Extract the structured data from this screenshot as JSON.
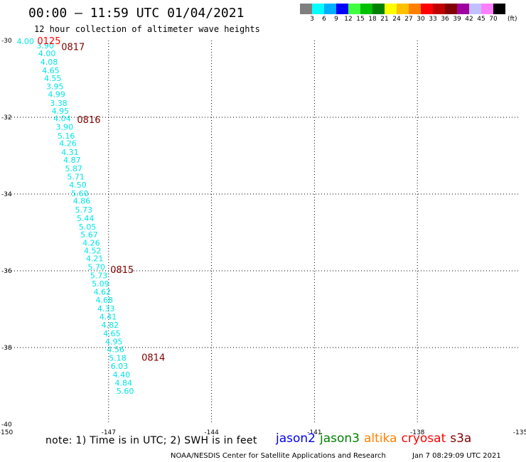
{
  "header": {
    "title": "00:00 – 11:59 UTC 01/04/2021",
    "subtitle": "12 hour collection of altimeter wave heights"
  },
  "colorbar": {
    "colors": [
      "#7f7f7f",
      "#00ffff",
      "#00b0ff",
      "#0000ff",
      "#40ff40",
      "#00c000",
      "#008000",
      "#ffff00",
      "#ffc000",
      "#ff8000",
      "#ff0000",
      "#c00000",
      "#800000",
      "#a000a0",
      "#c0c0ff",
      "#ff80ff",
      "#000000"
    ],
    "labels": [
      "3",
      "6",
      "9",
      "12",
      "15",
      "18",
      "21",
      "24",
      "27",
      "30",
      "33",
      "36",
      "39",
      "42",
      "45",
      "70"
    ],
    "unit": "(ft)"
  },
  "footer": {
    "note": "note:  1) Time is in UTC;  2) SWH is in feet",
    "satellites": [
      {
        "name": "jason2",
        "color": "#0000ff"
      },
      {
        "name": "jason3",
        "color": "#008000"
      },
      {
        "name": "altika",
        "color": "#ff8000"
      },
      {
        "name": "cryosat",
        "color": "#ff0000"
      },
      {
        "name": "s3a",
        "color": "#800000"
      }
    ],
    "credit": "NOAA/NESDIS Center for Satellite Applications and Research",
    "timestamp": "Jan  7 08:29:09 UTC 2021"
  },
  "chart_data": {
    "type": "scatter",
    "title": "",
    "xlabel": "",
    "ylabel": "",
    "xlim": [
      -150,
      -135
    ],
    "ylim": [
      -40,
      -30
    ],
    "x_ticks": [
      "-150",
      "-147",
      "-144",
      "-141",
      "-138",
      "-135"
    ],
    "y_ticks": [
      "-30",
      "-32",
      "-34",
      "-36",
      "-38",
      "-40"
    ],
    "grid": "dotted",
    "swh_color": "#00e5e5",
    "time_color": "#800000",
    "series": [
      {
        "name": "",
        "points": [
          {
            "x": -149.68,
            "y": -30.02,
            "label": "4.00"
          },
          {
            "x": -149.1,
            "y": -30.13,
            "label": "3.90"
          },
          {
            "x": -149.05,
            "y": -30.33,
            "label": "4.00"
          },
          {
            "x": -148.99,
            "y": -30.56,
            "label": "4.08"
          },
          {
            "x": -148.94,
            "y": -30.78,
            "label": "4.65"
          },
          {
            "x": -148.88,
            "y": -30.98,
            "label": "4.55"
          },
          {
            "x": -148.82,
            "y": -31.19,
            "label": "3.95"
          },
          {
            "x": -148.77,
            "y": -31.4,
            "label": "4.99"
          },
          {
            "x": -148.71,
            "y": -31.63,
            "label": "3.38"
          },
          {
            "x": -148.66,
            "y": -31.83,
            "label": "4.95"
          },
          {
            "x": -148.61,
            "y": -32.03,
            "label": "4.04"
          },
          {
            "x": -148.54,
            "y": -32.25,
            "label": "3.90"
          },
          {
            "x": -148.49,
            "y": -32.48,
            "label": "5.16"
          },
          {
            "x": -148.44,
            "y": -32.68,
            "label": "4.26"
          },
          {
            "x": -148.38,
            "y": -32.91,
            "label": "4.31"
          },
          {
            "x": -148.32,
            "y": -33.11,
            "label": "4.87"
          },
          {
            "x": -148.27,
            "y": -33.33,
            "label": "5.87"
          },
          {
            "x": -148.21,
            "y": -33.55,
            "label": "5.71"
          },
          {
            "x": -148.15,
            "y": -33.76,
            "label": "4.50"
          },
          {
            "x": -148.09,
            "y": -33.98,
            "label": "5.60"
          },
          {
            "x": -148.04,
            "y": -34.18,
            "label": "4.86"
          },
          {
            "x": -147.98,
            "y": -34.41,
            "label": "5.73"
          },
          {
            "x": -147.93,
            "y": -34.63,
            "label": "5.44"
          },
          {
            "x": -147.87,
            "y": -34.85,
            "label": "5.05"
          },
          {
            "x": -147.82,
            "y": -35.06,
            "label": "5.67"
          },
          {
            "x": -147.76,
            "y": -35.27,
            "label": "4.26"
          },
          {
            "x": -147.72,
            "y": -35.47,
            "label": "4.52"
          },
          {
            "x": -147.66,
            "y": -35.68,
            "label": "4.21"
          },
          {
            "x": -147.61,
            "y": -35.9,
            "label": "5.70"
          },
          {
            "x": -147.54,
            "y": -36.12,
            "label": "5.73"
          },
          {
            "x": -147.49,
            "y": -36.33,
            "label": "5.09"
          },
          {
            "x": -147.44,
            "y": -36.55,
            "label": "4.62"
          },
          {
            "x": -147.38,
            "y": -36.76,
            "label": "4.68"
          },
          {
            "x": -147.33,
            "y": -36.98,
            "label": "4.33"
          },
          {
            "x": -147.27,
            "y": -37.19,
            "label": "4.41"
          },
          {
            "x": -147.21,
            "y": -37.41,
            "label": "4.82"
          },
          {
            "x": -147.16,
            "y": -37.63,
            "label": "4.65"
          },
          {
            "x": -147.1,
            "y": -37.84,
            "label": "4.95"
          },
          {
            "x": -147.05,
            "y": -38.05,
            "label": "4.56"
          },
          {
            "x": -146.99,
            "y": -38.27,
            "label": "5.18"
          },
          {
            "x": -146.94,
            "y": -38.48,
            "label": "6.03"
          },
          {
            "x": -146.88,
            "y": -38.7,
            "label": "4.40"
          },
          {
            "x": -146.82,
            "y": -38.92,
            "label": "4.84"
          },
          {
            "x": -146.77,
            "y": -39.13,
            "label": "5.60"
          }
        ]
      }
    ],
    "time_labels": [
      {
        "x": -149.08,
        "y": -30.0,
        "label": "0125",
        "color": "#ff0000"
      },
      {
        "x": -148.38,
        "y": -30.16,
        "label": "0817",
        "color": "#800000"
      },
      {
        "x": -147.92,
        "y": -32.06,
        "label": "0816",
        "color": "#800000"
      },
      {
        "x": -146.95,
        "y": -35.96,
        "label": "0815",
        "color": "#800000"
      },
      {
        "x": -146.04,
        "y": -38.25,
        "label": "0814",
        "color": "#800000"
      }
    ]
  }
}
